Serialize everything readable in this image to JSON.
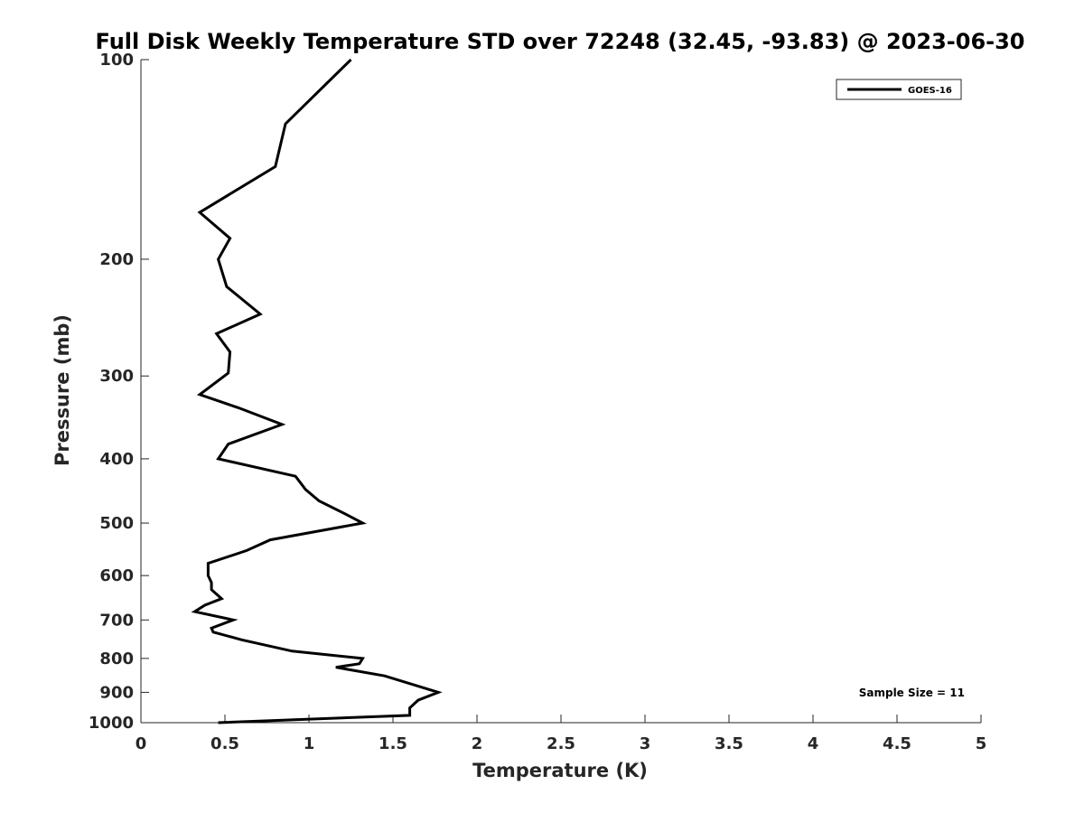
{
  "chart_data": {
    "type": "line",
    "title": "Full Disk Weekly Temperature STD over 72248 (32.45, -93.83) @ 2023-06-30",
    "xlabel": "Temperature (K)",
    "ylabel": "Pressure (mb)",
    "xlim": [
      0,
      5
    ],
    "ylim": [
      1000,
      100
    ],
    "y_scale": "log",
    "y_reversed": true,
    "x_ticks": [
      "0",
      "0.5",
      "1",
      "1.5",
      "2",
      "2.5",
      "3",
      "3.5",
      "4",
      "4.5",
      "5"
    ],
    "x_tick_values": [
      0,
      0.5,
      1,
      1.5,
      2,
      2.5,
      3,
      3.5,
      4,
      4.5,
      5
    ],
    "y_ticks": [
      "100",
      "200",
      "300",
      "400",
      "500",
      "600",
      "700",
      "800",
      "900",
      "1000"
    ],
    "y_tick_values": [
      100,
      200,
      300,
      400,
      500,
      600,
      700,
      800,
      900,
      1000
    ],
    "grid": false,
    "legend_position": "top-right",
    "annotation": "Sample Size = 11",
    "series": [
      {
        "name": "GOES-16",
        "color": "#000000",
        "points": [
          [
            0.46,
            1000
          ],
          [
            1.6,
            975
          ],
          [
            1.6,
            950
          ],
          [
            1.65,
            925
          ],
          [
            1.77,
            900
          ],
          [
            1.45,
            850
          ],
          [
            1.16,
            825
          ],
          [
            1.3,
            815
          ],
          [
            1.32,
            800
          ],
          [
            0.9,
            780
          ],
          [
            0.6,
            750
          ],
          [
            0.43,
            730
          ],
          [
            0.42,
            720
          ],
          [
            0.55,
            700
          ],
          [
            0.32,
            680
          ],
          [
            0.38,
            665
          ],
          [
            0.48,
            650
          ],
          [
            0.42,
            630
          ],
          [
            0.42,
            615
          ],
          [
            0.4,
            600
          ],
          [
            0.4,
            575
          ],
          [
            0.63,
            550
          ],
          [
            0.77,
            530
          ],
          [
            1.32,
            500
          ],
          [
            1.2,
            482
          ],
          [
            1.06,
            463
          ],
          [
            0.98,
            445
          ],
          [
            0.92,
            425
          ],
          [
            0.46,
            400
          ],
          [
            0.52,
            380
          ],
          [
            0.84,
            355
          ],
          [
            0.58,
            335
          ],
          [
            0.35,
            320
          ],
          [
            0.52,
            297
          ],
          [
            0.53,
            276
          ],
          [
            0.45,
            259
          ],
          [
            0.71,
            242
          ],
          [
            0.51,
            220
          ],
          [
            0.46,
            200
          ],
          [
            0.53,
            186
          ],
          [
            0.35,
            170
          ],
          [
            0.8,
            145
          ],
          [
            0.86,
            125
          ],
          [
            1.25,
            100
          ]
        ]
      }
    ]
  }
}
